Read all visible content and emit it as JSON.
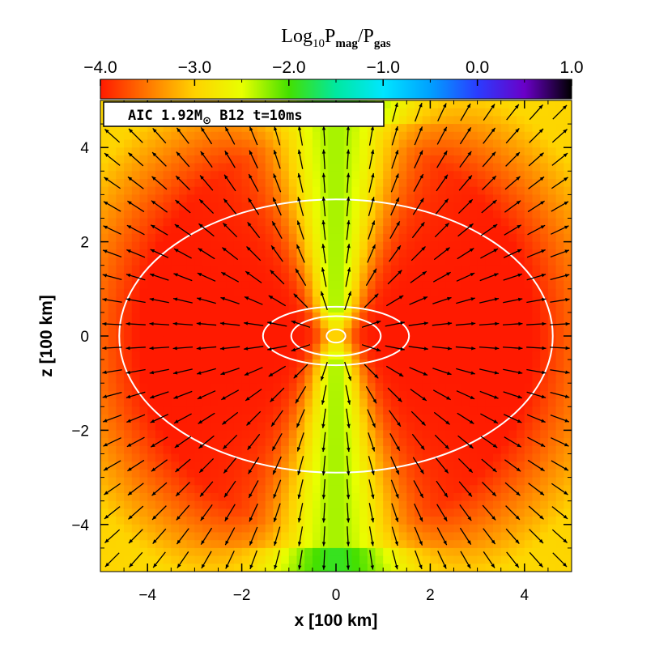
{
  "chart_data": {
    "type": "heatmap",
    "overlays": [
      "vector-field",
      "contour"
    ],
    "colorbar": {
      "title_base": "Log",
      "title_sub": "10",
      "title_p1": "P",
      "title_p1_sub": "mag",
      "title_slash": "/",
      "title_p2": "P",
      "title_p2_sub": "gas",
      "range": [
        -4.0,
        1.0
      ],
      "tick_values": [
        -4.0,
        -3.0,
        -2.0,
        -1.0,
        0.0,
        1.0
      ],
      "tick_labels": [
        "−4.0",
        "−3.0",
        "−2.0",
        "−1.0",
        "0.0",
        "1.0"
      ],
      "color_stops": [
        {
          "value": -4.0,
          "color": "#ff1a00"
        },
        {
          "value": -3.4,
          "color": "#ff8a00"
        },
        {
          "value": -3.0,
          "color": "#ffd200"
        },
        {
          "value": -2.5,
          "color": "#e8ff00"
        },
        {
          "value": -2.0,
          "color": "#44e000"
        },
        {
          "value": -1.5,
          "color": "#00e8a0"
        },
        {
          "value": -1.0,
          "color": "#00e6ff"
        },
        {
          "value": -0.5,
          "color": "#00a0ff"
        },
        {
          "value": 0.0,
          "color": "#2a3cff"
        },
        {
          "value": 0.5,
          "color": "#6a00c8"
        },
        {
          "value": 1.0,
          "color": "#000000"
        }
      ]
    },
    "annotation": {
      "text_pre": "AIC 1.92M",
      "text_sym": "⊙",
      "text_post": " B12 t=10ms"
    },
    "x_axis": {
      "label": "x [100 km]",
      "range": [
        -5,
        5
      ],
      "major_ticks": [
        -4,
        -2,
        0,
        2,
        4
      ],
      "tick_labels": [
        "−4",
        "−2",
        "0",
        "2",
        "4"
      ]
    },
    "y_axis": {
      "label": "z [100 km]",
      "range": [
        -5,
        5
      ],
      "major_ticks": [
        -4,
        -2,
        0,
        2,
        4
      ],
      "tick_labels": [
        "−4",
        "−2",
        "0",
        "2",
        "4"
      ]
    },
    "field_description": {
      "equatorial_log_ratio": -4.0,
      "polar_axis_log_ratio": -2.3,
      "corner_log_ratio": -3.0
    },
    "contours": [
      {
        "name": "outer",
        "semi_axis_x": 4.6,
        "semi_axis_z": 2.9
      },
      {
        "name": "middle",
        "semi_axis_x": 1.55,
        "semi_axis_z": 0.62
      },
      {
        "name": "inner",
        "semi_axis_x": 0.95,
        "semi_axis_z": 0.42
      },
      {
        "name": "core",
        "semi_axis_x": 0.2,
        "semi_axis_z": 0.14
      }
    ],
    "vector_field": {
      "description": "magnetic field vectors pointing outward from the origin",
      "grid_spacing": 0.5
    }
  }
}
